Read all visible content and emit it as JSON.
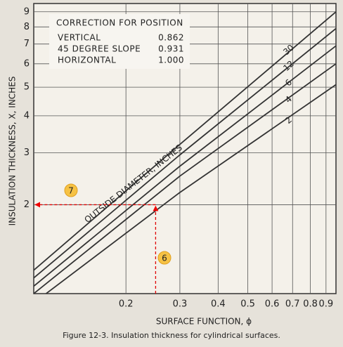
{
  "chart_data": {
    "type": "line",
    "title": "Figure 12-3. Insulation thickness for cylindrical surfaces.",
    "x_label": "SURFACE FUNCTION, ϕ",
    "y_label": "INSULATION THICKNESS, X, INCHES",
    "curve_label": "OUTSIDE DIAMETER, INCHES",
    "log_x": true,
    "log_y": true,
    "grid": true,
    "xlim": [
      0.1,
      0.97
    ],
    "ylim": [
      1,
      9.6
    ],
    "xticks": [
      0.2,
      0.3,
      0.4,
      0.5,
      0.6,
      0.7,
      0.8,
      0.9
    ],
    "yticks": [
      2,
      3,
      4,
      5,
      6,
      7,
      8,
      9
    ],
    "x": [
      0.1,
      0.3,
      0.97
    ],
    "series": [
      {
        "name": "30",
        "color": "#333333",
        "values": [
          1.2,
          3.2,
          9.0
        ]
      },
      {
        "name": "12",
        "color": "#333333",
        "values": [
          1.13,
          2.95,
          7.9
        ]
      },
      {
        "name": "6",
        "color": "#333333",
        "values": [
          1.06,
          2.7,
          6.9
        ]
      },
      {
        "name": "4",
        "color": "#333333",
        "values": [
          1.0,
          2.5,
          6.0
        ]
      },
      {
        "name": "2",
        "color": "#333333",
        "values": [
          0.93,
          2.2,
          5.1
        ]
      }
    ],
    "reference": {
      "x": 0.25,
      "y": 2,
      "color": "#e00000"
    },
    "annotations": [
      "7",
      "6"
    ],
    "table": {
      "title": "CORRECTION FOR POSITION",
      "rows": [
        [
          "VERTICAL",
          "0.862"
        ],
        [
          "45 DEGREE SLOPE",
          "0.931"
        ],
        [
          "HORIZONTAL",
          "1.000"
        ]
      ]
    }
  }
}
